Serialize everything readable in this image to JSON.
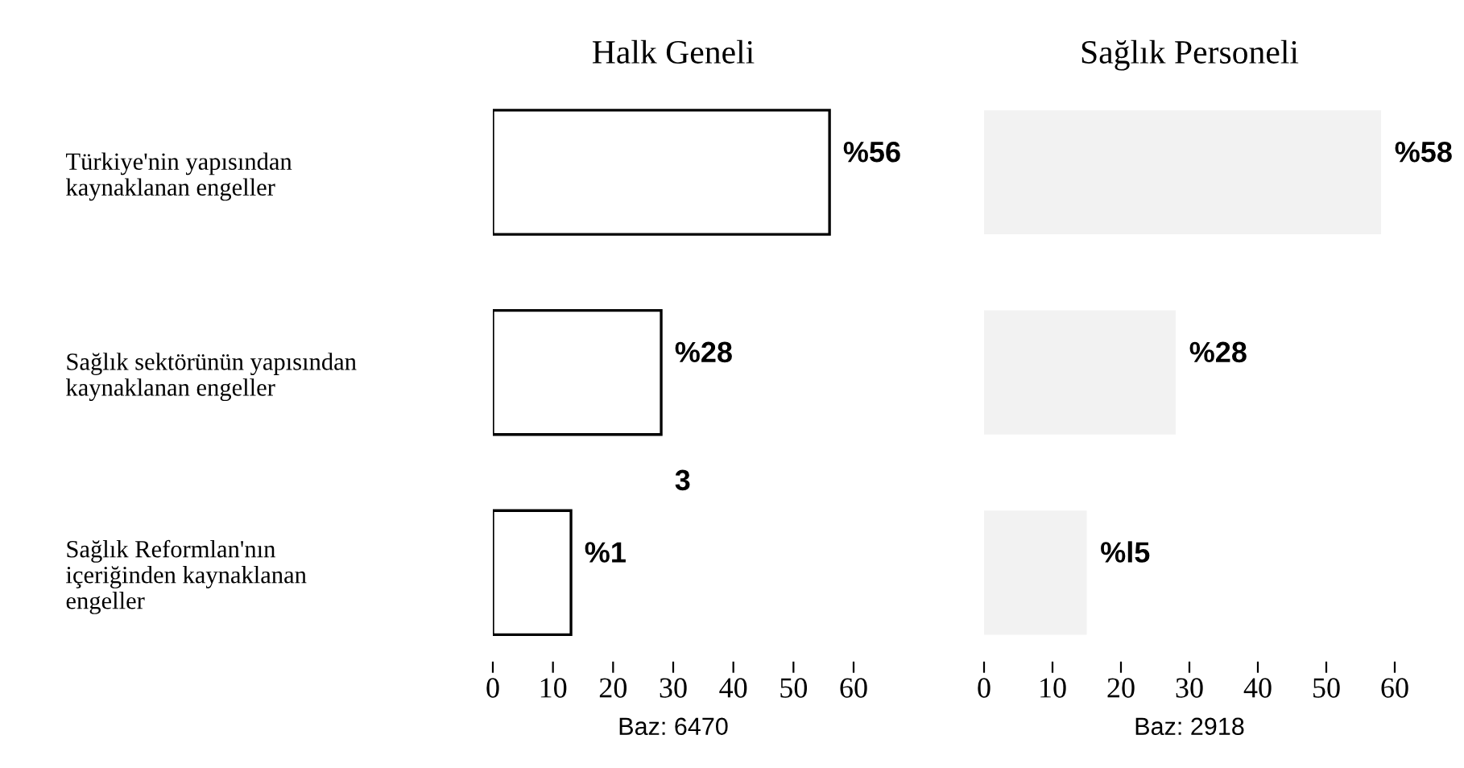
{
  "chart_data": [
    {
      "type": "bar",
      "orientation": "horizontal",
      "title": "Halk Geneli",
      "xlabel": "Baz: 6470",
      "categories": [
        "Türkiye'nin yapısından\nkaynaklanan engeller",
        "Sağlık sektörünün yapısından\nkaynaklanan engeller",
        "Sağlık Reformlan'nın\niçeriğinden kaynaklanan\nengeller"
      ],
      "values": [
        56,
        28,
        13
      ],
      "value_labels": [
        "%56",
        "%28",
        null
      ],
      "color": "#ffffff",
      "line_style": "solid",
      "xlim": [
        0,
        60
      ],
      "xticks": [
        0,
        10,
        20,
        30,
        40,
        50,
        60
      ],
      "annotations": [
        "%1",
        "3"
      ],
      "grid": false,
      "legend": false
    },
    {
      "type": "bar",
      "orientation": "horizontal",
      "title": "Sağlık Personeli",
      "xlabel": "Baz: 2918",
      "categories": [
        null,
        null,
        null
      ],
      "values": [
        58,
        28,
        15
      ],
      "value_labels": [
        "%58",
        "%28",
        "%l5"
      ],
      "color": "#f2f2f2",
      "xlim": [
        0,
        60
      ],
      "xticks": [
        0,
        10,
        20,
        30,
        40,
        50,
        60
      ],
      "tick_labels": "x",
      "grid": false,
      "legend": false
    }
  ]
}
